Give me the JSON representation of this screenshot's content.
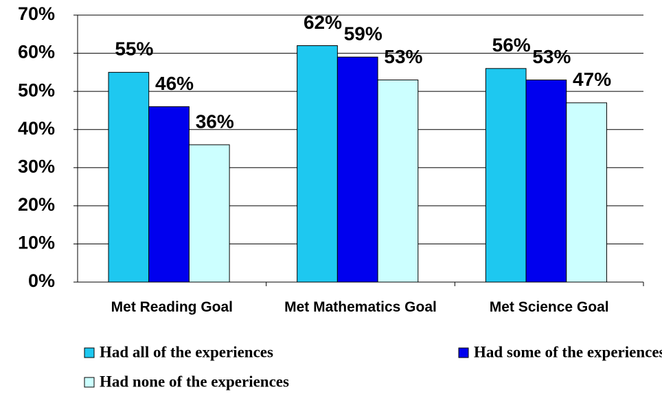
{
  "chart_data": {
    "type": "bar",
    "categories": [
      "Met Reading Goal",
      "Met Mathematics Goal",
      "Met Science Goal"
    ],
    "series": [
      {
        "name": "Had all of the experiences",
        "color": "#1ec8f0",
        "values": [
          55,
          62,
          56
        ],
        "value_labels": [
          "55%",
          "62%",
          "56%"
        ]
      },
      {
        "name": "Had some of the experiences",
        "color": "#0000ee",
        "values": [
          46,
          59,
          53
        ],
        "value_labels": [
          "46%",
          "59%",
          "53%"
        ]
      },
      {
        "name": "Had none of the experiences",
        "color": "#ccffff",
        "values": [
          36,
          53,
          47
        ],
        "value_labels": [
          "36%",
          "53%",
          "47%"
        ]
      }
    ],
    "ylim": [
      0,
      70
    ],
    "yticks": [
      {
        "value": 0,
        "label": "0%"
      },
      {
        "value": 10,
        "label": "10%"
      },
      {
        "value": 20,
        "label": "20%"
      },
      {
        "value": 30,
        "label": "30%"
      },
      {
        "value": 40,
        "label": "40%"
      },
      {
        "value": 50,
        "label": "50%"
      },
      {
        "value": 60,
        "label": "60%"
      },
      {
        "value": 70,
        "label": "70%"
      }
    ],
    "grid": true
  }
}
